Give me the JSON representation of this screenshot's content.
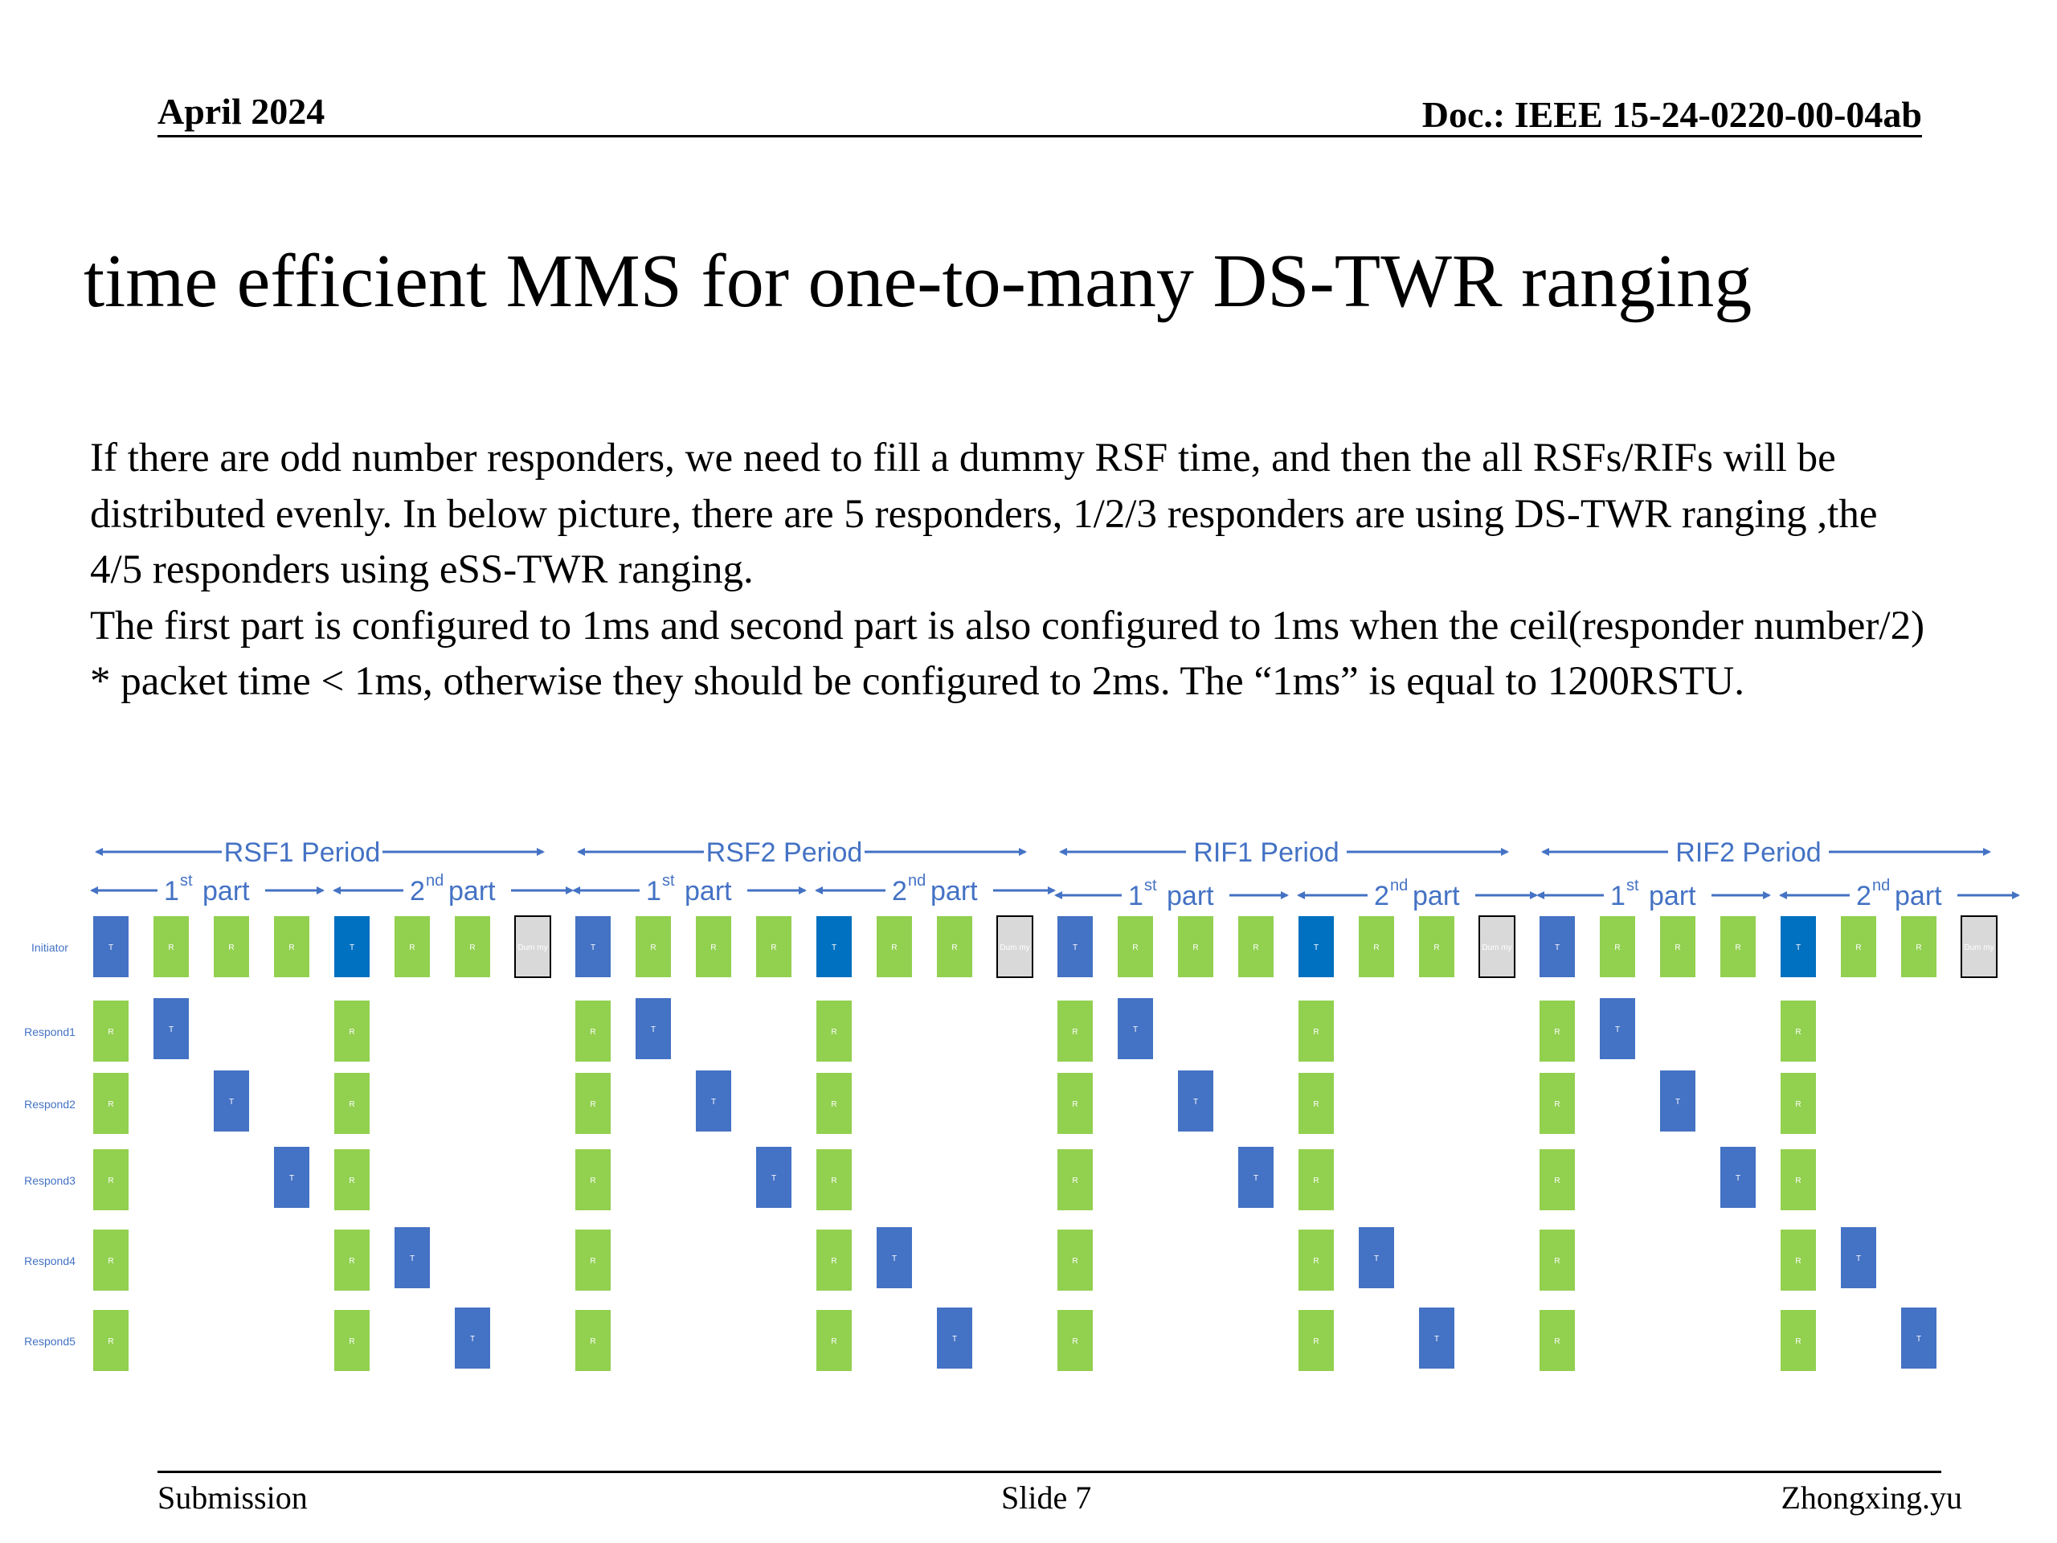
{
  "header": {
    "date": "April 2024",
    "doc_id": "Doc.: IEEE 15-24-0220-00-04ab"
  },
  "title": "time efficient  MMS for one-to-many DS-TWR ranging",
  "body": [
    "If there are odd number responders, we need to fill a dummy RSF time, and then the all RSFs/RIFs will be distributed evenly. In below picture, there are 5 responders, 1/2/3 responders are using DS-TWR ranging ,the 4/5 responders using eSS-TWR ranging.",
    "The first part is configured to 1ms and second part is also configured to 1ms when the ceil(responder number/2) * packet time < 1ms, otherwise they should be configured to 2ms. The “1ms” is equal to 1200RSTU."
  ],
  "diagram": {
    "periods": [
      "RSF1 Period",
      "RSF2 Period",
      "RIF1 Period",
      "RIF2 Period"
    ],
    "part_labels": {
      "first": "1",
      "first_sup": "st",
      "second": "2",
      "second_sup": "nd",
      "word": "part"
    },
    "rows": [
      "Initiator",
      "Respond1",
      "Respond2",
      "Respond3",
      "Respond4",
      "Respond5"
    ],
    "block_letters": {
      "transmit": "T",
      "receive": "R",
      "dummy": "Dum my"
    },
    "colors": {
      "transmit": "#4472C4",
      "transmit_dark": "#0070C0",
      "receive": "#92D050",
      "dummy": "#D9D9D9",
      "arrow": "#4472C4"
    }
  },
  "footer": {
    "left": "Submission",
    "center": "Slide 7",
    "right": "Zhongxing.yu"
  }
}
